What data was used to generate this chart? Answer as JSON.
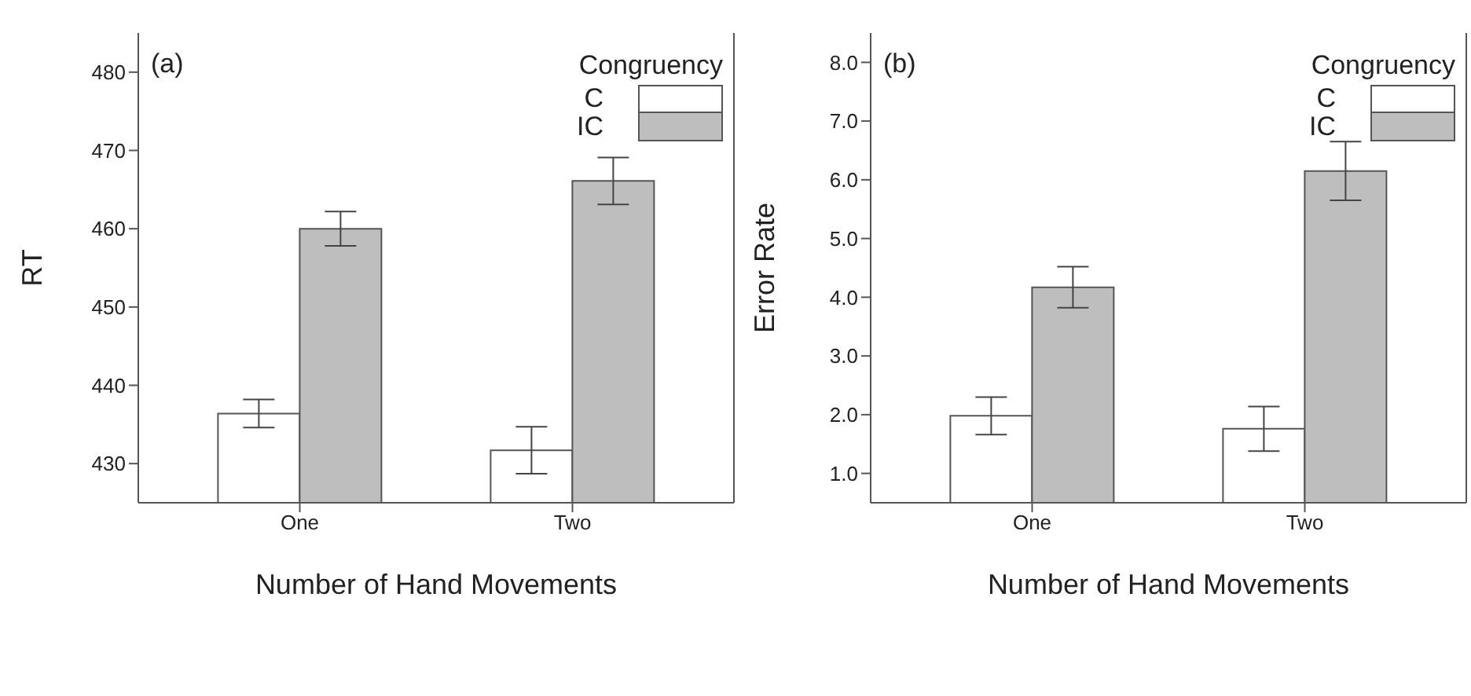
{
  "chart_data": [
    {
      "type": "bar",
      "title": "(a)",
      "xlabel": "Number of Hand Movements",
      "ylabel": "RT",
      "legend_title": "Congruency",
      "legend": "top right",
      "categories": [
        "One",
        "Two"
      ],
      "series": [
        {
          "name": "C",
          "color": "#ffffff",
          "values": [
            436.4,
            431.7
          ],
          "errors": [
            1.8,
            3.0
          ]
        },
        {
          "name": "IC",
          "color": "#bebebe",
          "values": [
            460.0,
            466.1
          ],
          "errors": [
            2.2,
            3.0
          ]
        }
      ],
      "ylim": [
        425,
        485
      ],
      "yticks": [
        430,
        440,
        450,
        460,
        470,
        480
      ]
    },
    {
      "type": "bar",
      "title": "(b)",
      "xlabel": "Number of Hand Movements",
      "ylabel": "Error Rate",
      "legend_title": "Congruency",
      "legend": "top right",
      "categories": [
        "One",
        "Two"
      ],
      "series": [
        {
          "name": "C",
          "color": "#ffffff",
          "values": [
            1.98,
            1.76
          ],
          "errors": [
            0.32,
            0.38
          ]
        },
        {
          "name": "IC",
          "color": "#bebebe",
          "values": [
            4.17,
            6.15
          ],
          "errors": [
            0.35,
            0.5
          ]
        }
      ],
      "ylim": [
        0.5,
        8.5
      ],
      "yticks": [
        {
          "value": 1,
          "label": "1.0"
        },
        {
          "value": 2,
          "label": "2.0"
        },
        {
          "value": 3,
          "label": "3.0"
        },
        {
          "value": 4,
          "label": "4.0"
        },
        {
          "value": 5,
          "label": "5.0"
        },
        {
          "value": 6,
          "label": "6.0"
        },
        {
          "value": 7,
          "label": "7.0"
        },
        {
          "value": 8,
          "label": "8.0"
        }
      ]
    }
  ]
}
